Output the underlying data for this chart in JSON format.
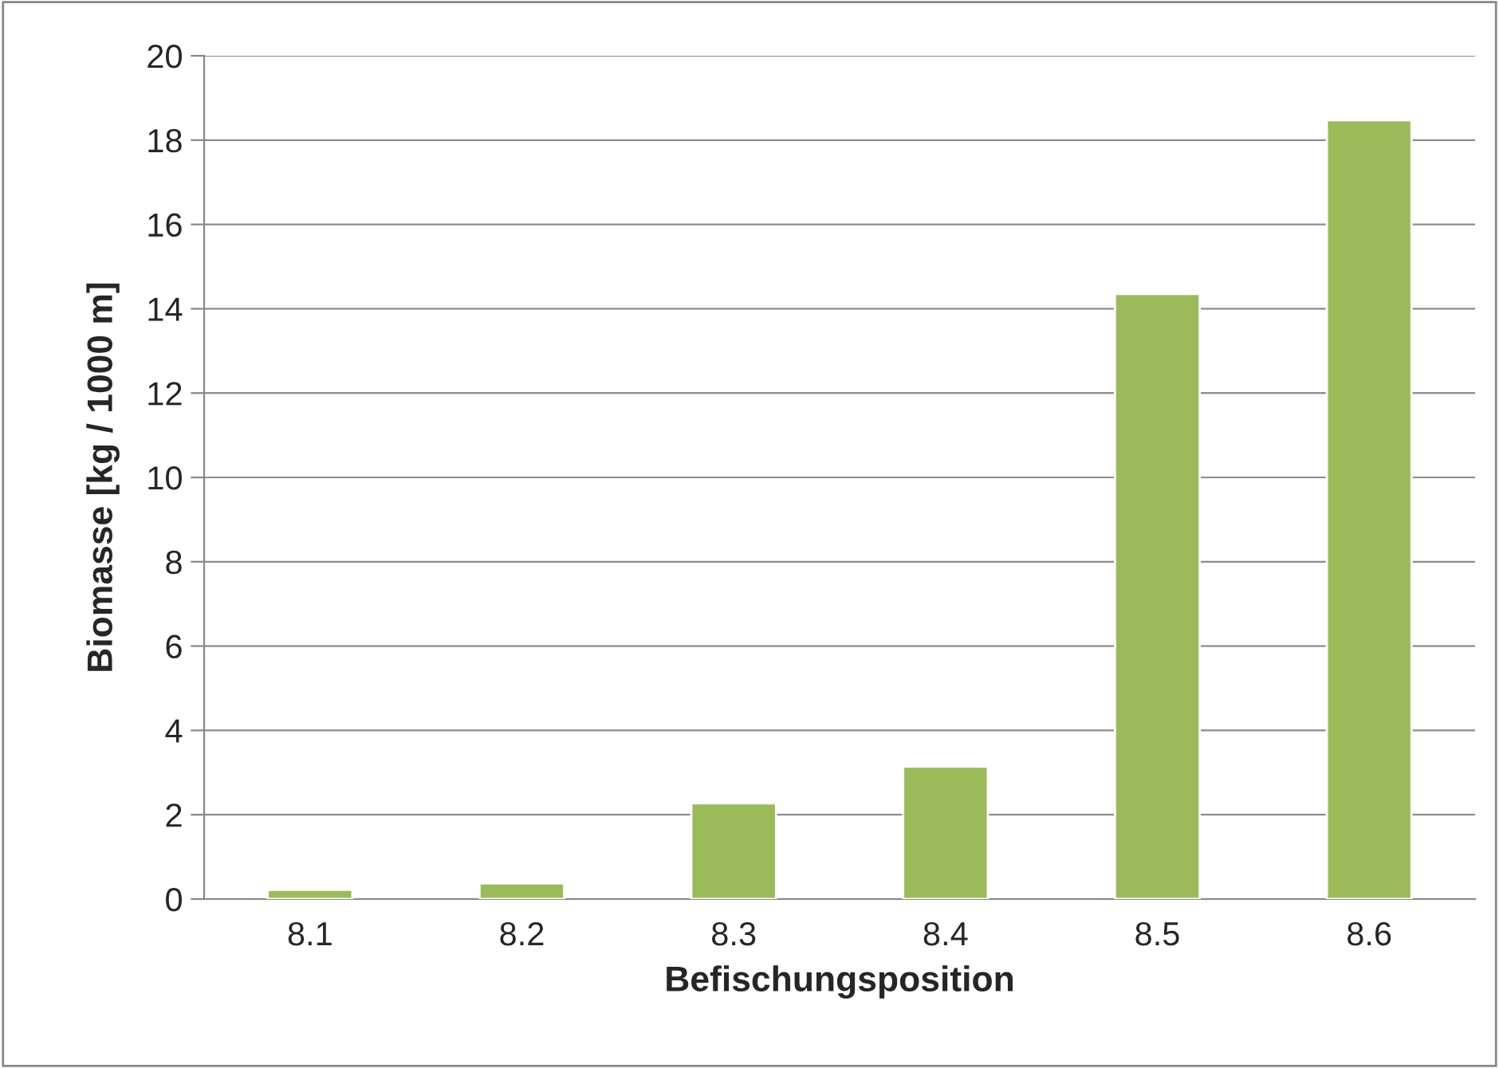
{
  "chart_data": {
    "type": "bar",
    "xlabel": "Befischungsposition",
    "ylabel": "Biomasse [kg / 1000 m]",
    "categories": [
      "8.1",
      "8.2",
      "8.3",
      "8.4",
      "8.5",
      "8.6"
    ],
    "values": [
      0.22,
      0.37,
      2.27,
      3.14,
      14.35,
      18.47
    ],
    "color": "#9bbb59",
    "ylim": [
      0,
      20
    ],
    "yticks": [
      0,
      2,
      4,
      6,
      8,
      10,
      12,
      14,
      16,
      18,
      20
    ],
    "grid": "y"
  }
}
